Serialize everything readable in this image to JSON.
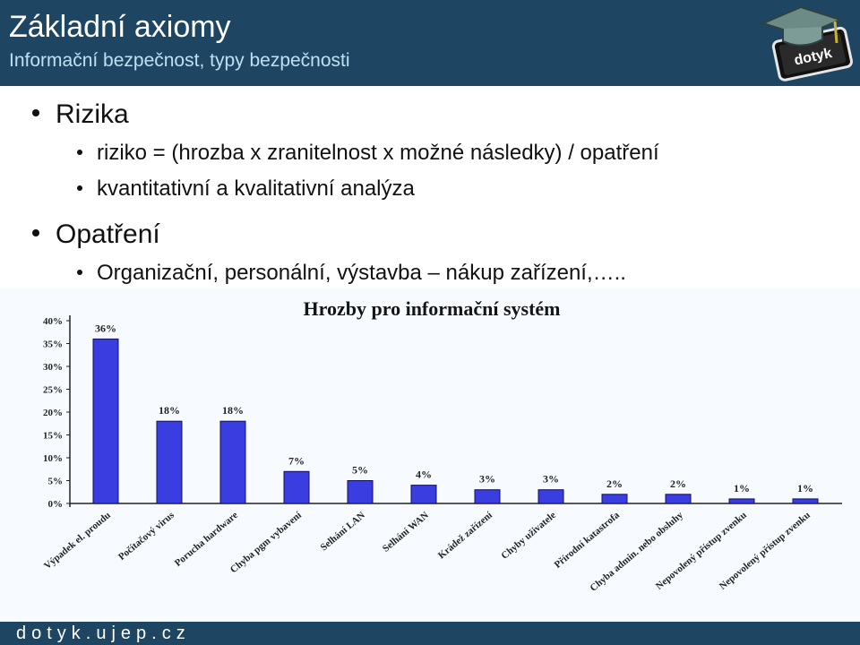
{
  "header": {
    "title": "Základní axiomy",
    "subtitle": "Informační bezpečnost, typy bezpečnosti",
    "logo_text": "dotyk"
  },
  "content": {
    "items": [
      {
        "text": "Rizika",
        "children": [
          "riziko = (hrozba x zranitelnost x možné následky) / opatření",
          "kvantitativní a kvalitativní analýza"
        ]
      },
      {
        "text": "Opatření",
        "children": [
          "Organizační, personální, výstavba – nákup zařízení,….."
        ]
      }
    ]
  },
  "chart_data": {
    "type": "bar",
    "title": "Hrozby pro informační systém",
    "categories": [
      "Výpadek el. proudu",
      "Počítačový virus",
      "Porucha hardware",
      "Chyba pgm vybavení",
      "Selhání LAN",
      "Selhání WAN",
      "Krádež zařízení",
      "Chyby uživatele",
      "Přírodní katastrofa",
      "Chyba admin. nebo obsluhy",
      "Nepovolený přístup zvenku",
      "Nepovolený přístup zvenku"
    ],
    "values": [
      36,
      18,
      18,
      7,
      5,
      4,
      3,
      3,
      2,
      2,
      1,
      1
    ],
    "value_labels": [
      "36%",
      "18%",
      "18%",
      "7%",
      "5%",
      "4%",
      "3%",
      "3%",
      "2%",
      "2%",
      "1%",
      "1%"
    ],
    "yticks": [
      "0%",
      "5%",
      "10%",
      "15%",
      "20%",
      "25%",
      "30%",
      "35%",
      "40%"
    ],
    "ylim": [
      0,
      40
    ],
    "bar_color": "#3a3de0",
    "grid": false
  },
  "footer": {
    "url": "dotyk.ujep.cz"
  },
  "colors": {
    "header_bg": "#1e4663",
    "subtitle": "#bfe0f2",
    "chart_bg": "#f7fbff"
  }
}
